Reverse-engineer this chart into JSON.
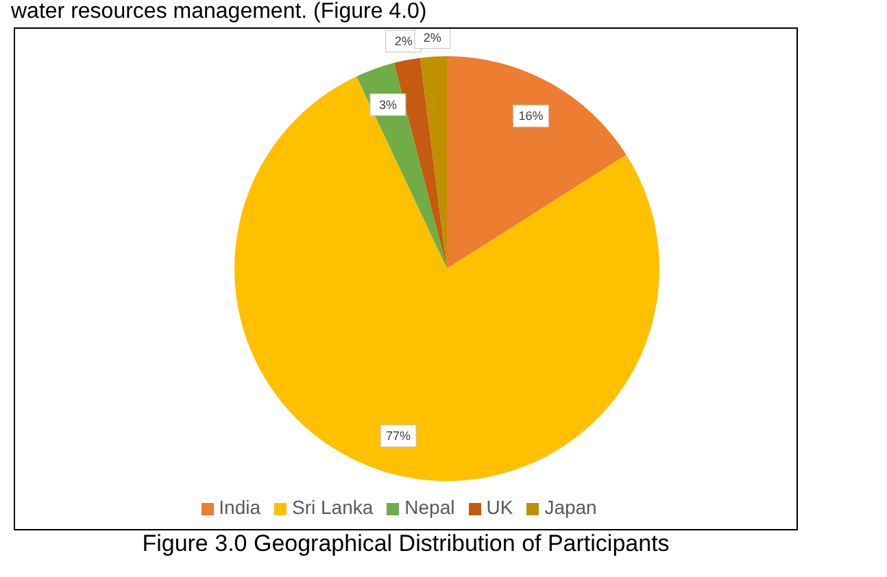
{
  "chart_data": {
    "type": "pie",
    "title": "Figure 3.0 Geographical Distribution of Participants",
    "annotations": [
      "water resources management. (Figure 4.0)"
    ],
    "categories": [
      "India",
      "Sri Lanka",
      "Nepal",
      "UK",
      "Japan"
    ],
    "values": [
      16,
      77,
      3,
      2,
      2
    ],
    "colors": [
      "#ed7d31",
      "#ffc000",
      "#70ad47",
      "#c55a11",
      "#bf9000"
    ],
    "value_labels": [
      "16%",
      "77%",
      "3%",
      "2%",
      "2%"
    ],
    "legend": "bottom"
  }
}
